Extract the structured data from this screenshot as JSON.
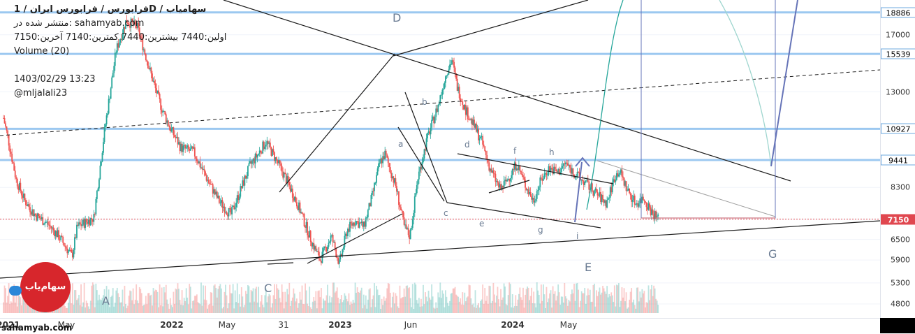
{
  "header": {
    "title": "فرابورس / فرابورس ایران / 1D / سهامیاب",
    "published_on": "منتشر شده در: sahamyab.com",
    "ohlc": "اولین:7440  بیشترین:7440  کمترین:7140  آخرین:7150",
    "volume": "Volume (20)",
    "datetime": "1403/02/29 13:23",
    "author": "@mljalali23"
  },
  "watermark": "sahamyab.com",
  "logo_text": "سهام‌یاب",
  "icons": [
    "cloud-icon"
  ],
  "colors": {
    "up": "#26a69a",
    "down": "#ef5350",
    "hline": "#9cc8f0",
    "trend": "#1a1a1a",
    "arrow": "#6674b8",
    "projection": "#26a69a",
    "price_flag": "#e0474f"
  },
  "waves": {
    "A": "A",
    "C": "C",
    "D": "D",
    "E": "E",
    "G": "G",
    "a": "a",
    "b": "b",
    "c": "c",
    "d": "d",
    "e": "e",
    "f": "f",
    "g": "g",
    "h": "h",
    "i": "i"
  },
  "chart_data": {
    "type": "candlestick",
    "y_scale": "log",
    "ylim": [
      4600,
      19500
    ],
    "y_ticks": [
      4800,
      5300,
      5900,
      6500,
      7150,
      8300,
      9441,
      10927,
      13000,
      15539,
      17000,
      18886
    ],
    "marked_levels": [
      18886,
      15539,
      10927,
      9441
    ],
    "last_price": 7150,
    "x_ticks": [
      "2021",
      "May",
      "2022",
      "May",
      "31",
      "2023",
      "Jun",
      "2024",
      "May"
    ],
    "price_path": [
      [
        "2021-01-01",
        11500
      ],
      [
        "2021-01-10",
        10400
      ],
      [
        "2021-01-25",
        8600
      ],
      [
        "2021-02-10",
        7800
      ],
      [
        "2021-03-01",
        7300
      ],
      [
        "2021-03-25",
        7000
      ],
      [
        "2021-04-15",
        6600
      ],
      [
        "2021-05-10",
        6000
      ],
      [
        "2021-05-20",
        6900
      ],
      [
        "2021-06-20",
        7200
      ],
      [
        "2021-07-10",
        10800
      ],
      [
        "2021-08-01",
        15800
      ],
      [
        "2021-08-20",
        18200
      ],
      [
        "2021-09-10",
        17600
      ],
      [
        "2021-09-25",
        15500
      ],
      [
        "2021-10-10",
        13600
      ],
      [
        "2021-10-25",
        12100
      ],
      [
        "2021-11-10",
        11000
      ],
      [
        "2021-12-01",
        10000
      ],
      [
        "2021-12-25",
        9800
      ],
      [
        "2022-01-20",
        8600
      ],
      [
        "2022-02-10",
        7800
      ],
      [
        "2022-03-05",
        7300
      ],
      [
        "2022-03-25",
        8300
      ],
      [
        "2022-04-10",
        9200
      ],
      [
        "2022-04-25",
        9700
      ],
      [
        "2022-05-10",
        10300
      ],
      [
        "2022-05-30",
        9400
      ],
      [
        "2022-06-20",
        8500
      ],
      [
        "2022-07-10",
        7600
      ],
      [
        "2022-08-05",
        6400
      ],
      [
        "2022-08-20",
        5900
      ],
      [
        "2022-09-10",
        6600
      ],
      [
        "2022-09-25",
        5800
      ],
      [
        "2022-10-10",
        6800
      ],
      [
        "2022-10-25",
        7100
      ],
      [
        "2022-11-10",
        6900
      ],
      [
        "2022-11-25",
        7900
      ],
      [
        "2022-12-10",
        9300
      ],
      [
        "2022-12-20",
        9700
      ],
      [
        "2023-01-10",
        8300
      ],
      [
        "2023-01-25",
        6900
      ],
      [
        "2023-02-05",
        6600
      ],
      [
        "2023-02-20",
        8700
      ],
      [
        "2023-03-10",
        10500
      ],
      [
        "2023-03-30",
        12200
      ],
      [
        "2023-04-15",
        14300
      ],
      [
        "2023-04-25",
        15100
      ],
      [
        "2023-05-05",
        13300
      ],
      [
        "2023-05-20",
        12000
      ],
      [
        "2023-06-05",
        11100
      ],
      [
        "2023-06-20",
        10300
      ],
      [
        "2023-07-05",
        9100
      ],
      [
        "2023-07-25",
        8200
      ],
      [
        "2023-08-10",
        8700
      ],
      [
        "2023-08-25",
        9300
      ],
      [
        "2023-09-10",
        8400
      ],
      [
        "2023-09-25",
        7800
      ],
      [
        "2023-10-10",
        8600
      ],
      [
        "2023-10-25",
        9100
      ],
      [
        "2023-11-10",
        8900
      ],
      [
        "2023-11-25",
        9300
      ],
      [
        "2023-12-10",
        8900
      ],
      [
        "2023-12-25",
        8600
      ],
      [
        "2024-01-10",
        8300
      ],
      [
        "2024-01-25",
        8000
      ],
      [
        "2024-02-10",
        7700
      ],
      [
        "2024-02-25",
        8700
      ],
      [
        "2024-03-05",
        9000
      ],
      [
        "2024-03-20",
        8200
      ],
      [
        "2024-04-05",
        7700
      ],
      [
        "2024-04-20",
        7900
      ],
      [
        "2024-05-05",
        7400
      ],
      [
        "2024-05-18",
        7150
      ]
    ]
  }
}
